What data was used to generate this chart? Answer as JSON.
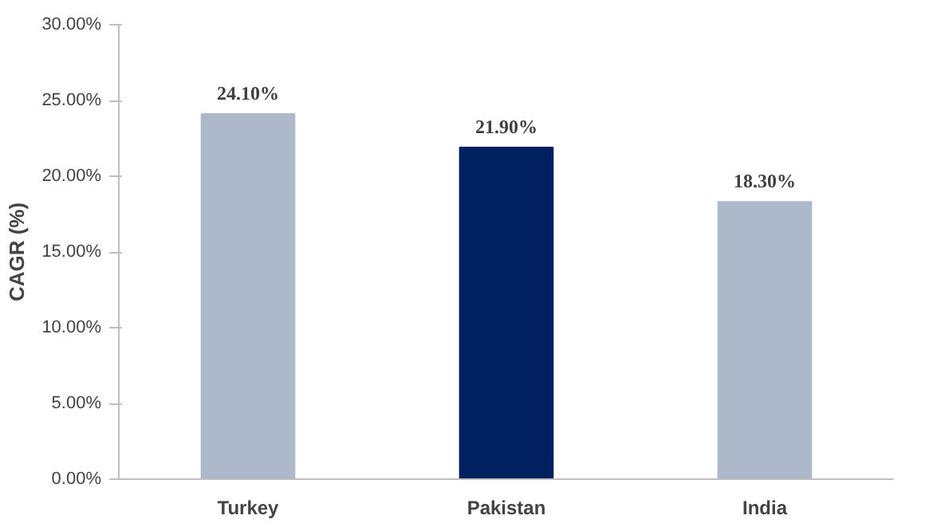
{
  "chart_data": {
    "type": "bar",
    "ylabel": "CAGR (%)",
    "categories": [
      "Turkey",
      "Pakistan",
      "India"
    ],
    "values": [
      24.1,
      21.9,
      18.3
    ],
    "colors": [
      "#adb9ca",
      "#002060",
      "#adb9ca"
    ],
    "value_labels": [
      "24.10%",
      "21.90%",
      "18.30%"
    ],
    "ylim": [
      0,
      30
    ],
    "yticks": [
      {
        "value": 0,
        "label": "0.00%"
      },
      {
        "value": 5,
        "label": "5.00%"
      },
      {
        "value": 10,
        "label": "10.00%"
      },
      {
        "value": 15,
        "label": "15.00%"
      },
      {
        "value": 20,
        "label": "20.00%"
      },
      {
        "value": 25,
        "label": "25.00%"
      },
      {
        "value": 30,
        "label": "30.00%"
      }
    ],
    "grid": false
  }
}
